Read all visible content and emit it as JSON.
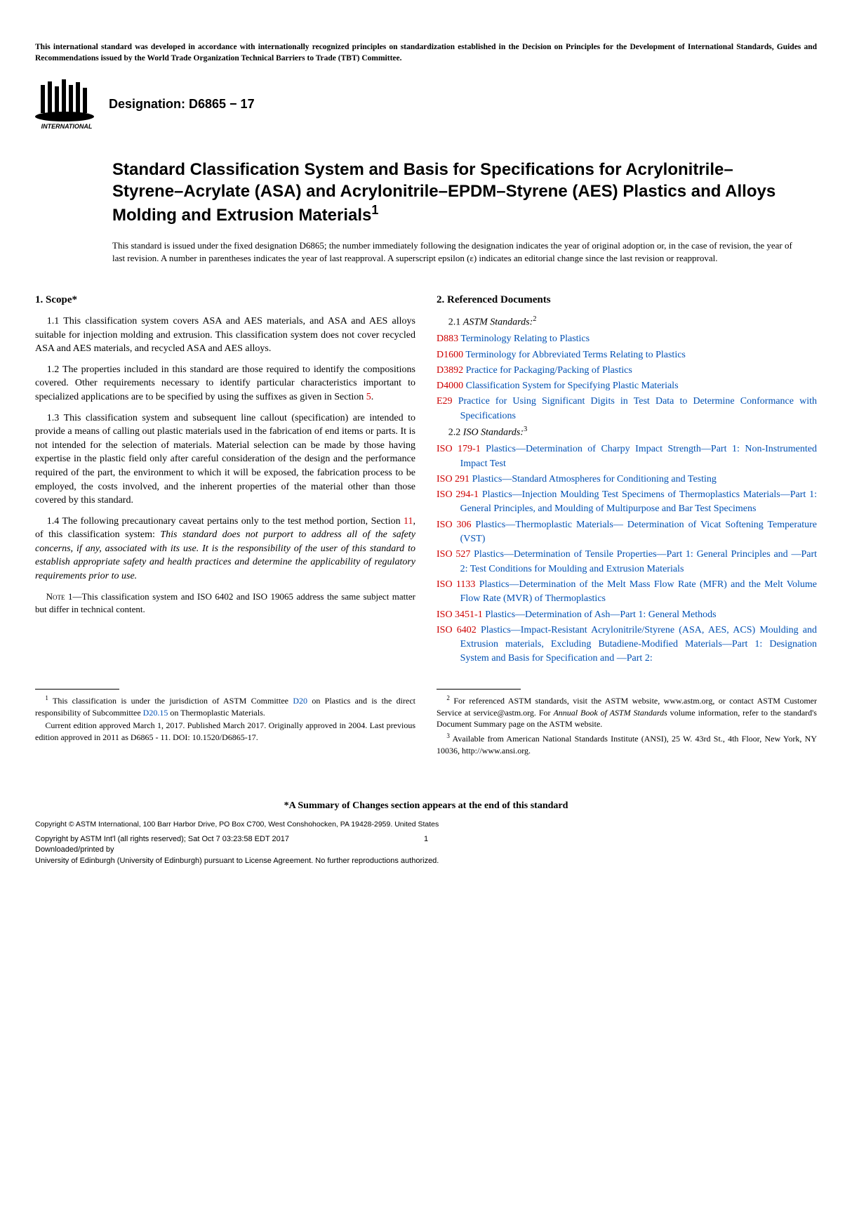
{
  "topNotice": "This international standard was developed in accordance with internationally recognized principles on standardization established in the Decision on Principles for the Development of International Standards, Guides and Recommendations issued by the World Trade Organization Technical Barriers to Trade (TBT) Committee.",
  "designation": "Designation: D6865 − 17",
  "logoText": "INTERNATIONAL",
  "title": "Standard Classification System and Basis for Specifications for Acrylonitrile–Styrene–Acrylate (ASA) and Acrylonitrile–EPDM–Styrene (AES) Plastics and Alloys Molding and Extrusion Materials",
  "titleSup": "1",
  "issuanceNote": "This standard is issued under the fixed designation D6865; the number immediately following the designation indicates the year of original adoption or, in the case of revision, the year of last revision. A number in parentheses indicates the year of last reapproval. A superscript epsilon (ε) indicates an editorial change since the last revision or reapproval.",
  "scope": {
    "heading": "1.  Scope*",
    "p1": "1.1 This classification system covers ASA and AES materials, and ASA and AES alloys suitable for injection molding and extrusion. This classification system does not cover recycled ASA and AES materials, and recycled ASA and AES alloys.",
    "p2a": "1.2 The properties included in this standard are those required to identify the compositions covered. Other requirements necessary to identify particular characteristics important to specialized applications are to be specified by using the suffixes as given in Section ",
    "p2ref": "5",
    "p2b": ".",
    "p3": "1.3 This classification system and subsequent line callout (specification) are intended to provide a means of calling out plastic materials used in the fabrication of end items or parts. It is not intended for the selection of materials. Material selection can be made by those having expertise in the plastic field only after careful consideration of the design and the performance required of the part, the environment to which it will be exposed, the fabrication process to be employed, the costs involved, and the inherent properties of the material other than those covered by this standard.",
    "p4a": "1.4 The following precautionary caveat pertains only to the test method portion, Section ",
    "p4ref": "11",
    "p4b": ", of this classification system: ",
    "p4italic": "This standard does not purport to address all of the safety concerns, if any, associated with its use. It is the responsibility of the user of this standard to establish appropriate safety and health practices and determine the applicability of regulatory requirements prior to use.",
    "noteLabel": "Note",
    "noteText": " 1—This classification system and ISO 6402 and ISO 19065 address the same subject matter but differ in technical content."
  },
  "refs": {
    "heading": "2.  Referenced Documents",
    "sub1num": "2.1 ",
    "sub1": "ASTM Standards:",
    "sub1sup": "2",
    "astm": [
      {
        "code": "D883",
        "title": " Terminology Relating to Plastics"
      },
      {
        "code": "D1600",
        "title": " Terminology for Abbreviated Terms Relating to Plastics"
      },
      {
        "code": "D3892",
        "title": " Practice for Packaging/Packing of Plastics"
      },
      {
        "code": "D4000",
        "title": " Classification System for Specifying Plastic Materials"
      },
      {
        "code": "E29",
        "title": " Practice for Using Significant Digits in Test Data to Determine Conformance with Specifications"
      }
    ],
    "sub2num": "2.2 ",
    "sub2": "ISO Standards:",
    "sub2sup": "3",
    "iso": [
      {
        "code": "ISO 179-1",
        "title": " Plastics—Determination of Charpy Impact Strength—Part 1: Non-Instrumented Impact Test"
      },
      {
        "code": "ISO 291",
        "title": " Plastics—Standard Atmospheres for Conditioning and Testing"
      },
      {
        "code": "ISO 294-1",
        "title": " Plastics—Injection Moulding Test Specimens of Thermoplastics Materials—Part 1: General Principles, and Moulding of Multipurpose and Bar Test Specimens"
      },
      {
        "code": "ISO 306",
        "title": " Plastics—Thermoplastic Materials— Determination of Vicat Softening Temperature (VST)"
      },
      {
        "code": "ISO 527",
        "title": " Plastics—Determination of Tensile Properties—Part 1: General Principles and —Part 2: Test Conditions for Moulding and Extrusion Materials"
      },
      {
        "code": "ISO 1133",
        "title": " Plastics—Determination of the Melt Mass Flow Rate (MFR) and the Melt Volume Flow Rate (MVR) of Thermoplastics"
      },
      {
        "code": "ISO 3451-1",
        "title": " Plastics—Determination of Ash—Part 1: General Methods"
      },
      {
        "code": "ISO 6402",
        "title": " Plastics—Impact-Resistant Acrylonitrile/Styrene (ASA, AES, ACS) Moulding and Extrusion materials, Excluding Butadiene-Modified Materials—Part 1: Designation System and Basis for Specification and —Part 2:"
      }
    ]
  },
  "footnotes": {
    "left": {
      "p1a": " This classification is under the jurisdiction of ASTM Committee ",
      "p1link1": "D20",
      "p1b": " on Plastics and is the direct responsibility of Subcommittee ",
      "p1link2": "D20.15",
      "p1c": " on Thermoplastic Materials.",
      "p2": "Current edition approved March 1, 2017. Published March 2017. Originally approved in 2004. Last previous edition approved in 2011 as D6865 - 11. DOI: 10.1520/D6865-17."
    },
    "right": {
      "p1a": " For referenced ASTM standards, visit the ASTM website, www.astm.org, or contact ASTM Customer Service at service@astm.org. For ",
      "p1italic": "Annual Book of ASTM Standards",
      "p1b": " volume information, refer to the standard's Document Summary page on the ASTM website.",
      "p2": " Available from American National Standards Institute (ANSI), 25 W. 43rd St., 4th Floor, New York, NY 10036, http://www.ansi.org."
    }
  },
  "summaryNote": "*A Summary of Changes section appears at the end of this standard",
  "copyright": "Copyright © ASTM International, 100 Barr Harbor Drive, PO Box C700, West Conshohocken, PA 19428-2959. United States",
  "footer": {
    "line1": "Copyright by ASTM Int'l (all rights reserved); Sat Oct  7 03:23:58 EDT 2017",
    "line2": "Downloaded/printed by",
    "line3": "University of Edinburgh (University of Edinburgh) pursuant to License Agreement. No further reproductions authorized."
  },
  "pageNum": "1"
}
